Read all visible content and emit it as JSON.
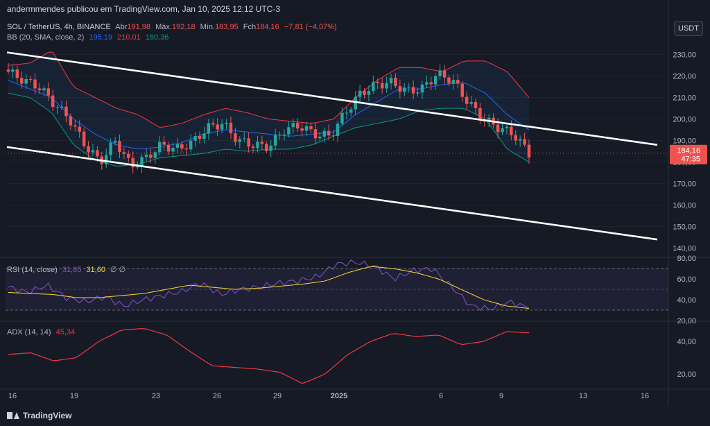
{
  "header": {
    "publisher_line": "andermmendes publicou em TradingView.com, Jan 10, 2025 12:12 UTC-3",
    "currency_button": "USDT"
  },
  "legend": {
    "symbol": "SOL / TetherUS, 4h, BINANCE",
    "open_label": "Abr",
    "open_value": "191,98",
    "high_label": "Máx.",
    "high_value": "192,18",
    "low_label": "Mín.",
    "low_value": "183,95",
    "close_label": "Fch",
    "close_value": "184,16",
    "change_value": "−7,81 (−4,07%)",
    "bb_label": "BB (20, SMA, close, 2)",
    "bb_basis": "195,19",
    "bb_upper": "210,01",
    "bb_lower": "180,36"
  },
  "rsi_legend": {
    "label": "RSI (14, close)",
    "value": "31,85",
    "ma_value": "31,60",
    "extra": "∅ ∅"
  },
  "adx_legend": {
    "label": "ADX (14, 14)",
    "value": "45,34"
  },
  "price_tag": {
    "price": "184,16",
    "countdown": "47:35"
  },
  "footer": {
    "brand": "TradingView"
  },
  "colors": {
    "up": "#26a69a",
    "down": "#ef5350",
    "bb_basis": "#2962ff",
    "bb_upper": "#f23645",
    "bb_lower": "#089981",
    "rsi": "#7e57c2",
    "rsi_ma": "#fdd835",
    "adx": "#f23645",
    "trendline": "#ffffff"
  },
  "chart_data": [
    {
      "type": "candlestick",
      "title": "SOL / TetherUS, 4h, BINANCE",
      "x_ticks": [
        "16",
        "19",
        "23",
        "26",
        "29",
        "2025",
        "6",
        "9",
        "13",
        "16"
      ],
      "y_ticks": [
        "230,00",
        "220,00",
        "210,00",
        "200,00",
        "190,00",
        "180,00",
        "170,00",
        "160,00",
        "150,00",
        "140,00"
      ],
      "ylim": [
        136,
        236
      ],
      "close_anchors": [
        222,
        218,
        215,
        207,
        200,
        188,
        180,
        190,
        178,
        182,
        188,
        186,
        189,
        196,
        198,
        190,
        188,
        187,
        195,
        197,
        193,
        192,
        203,
        212,
        216,
        217,
        213,
        214,
        221,
        218,
        208,
        200,
        196,
        193,
        184
      ],
      "bb_upper_anchors": [
        225,
        226,
        232,
        215,
        210,
        205,
        202,
        196,
        198,
        202,
        205,
        203,
        200,
        199,
        198,
        200,
        210,
        218,
        224,
        224,
        222,
        227,
        227,
        222,
        210
      ],
      "bb_basis_anchors": [
        218,
        214,
        210,
        200,
        193,
        188,
        186,
        187,
        189,
        193,
        195,
        194,
        193,
        192,
        193,
        194,
        202,
        208,
        214,
        214,
        216,
        217,
        212,
        202,
        195
      ],
      "bb_lower_anchors": [
        212,
        210,
        203,
        188,
        181,
        178,
        179,
        182,
        183,
        184,
        186,
        185,
        186,
        186,
        188,
        192,
        196,
        198,
        200,
        204,
        205,
        205,
        200,
        186,
        180
      ],
      "trendlines": [
        {
          "name": "upper",
          "points": [
            [
              16.0,
              231
            ],
            [
              17.0,
              188
            ]
          ]
        },
        {
          "name": "lower",
          "points": [
            [
              16.0,
              187
            ],
            [
              17.0,
              144
            ]
          ]
        }
      ],
      "last_price": 184.16
    },
    {
      "type": "line",
      "title": "RSI (14, close)",
      "y_ticks": [
        "80,00",
        "60,00",
        "40,00",
        "20,00"
      ],
      "ylim": [
        20,
        80
      ],
      "band": [
        30,
        70
      ],
      "rsi_anchors": [
        52,
        47,
        54,
        42,
        38,
        43,
        34,
        40,
        44,
        48,
        56,
        45,
        50,
        52,
        56,
        58,
        62,
        74,
        76,
        72,
        60,
        68,
        70,
        52,
        34,
        31,
        38,
        31.85
      ],
      "ma_anchors": [
        47,
        46,
        45,
        42,
        42,
        44,
        46,
        50,
        54,
        52,
        50,
        51,
        53,
        55,
        58,
        66,
        72,
        70,
        66,
        60,
        50,
        40,
        34,
        31.6
      ]
    },
    {
      "type": "line",
      "title": "ADX (14, 14)",
      "y_ticks": [
        "40,00",
        "20,00"
      ],
      "ylim": [
        11,
        52
      ],
      "adx_anchors": [
        32,
        33,
        28,
        30,
        40,
        47,
        48,
        44,
        34,
        25,
        24,
        23,
        21,
        14,
        20,
        32,
        40,
        45,
        43,
        44,
        38,
        40,
        46,
        45.34
      ]
    }
  ]
}
